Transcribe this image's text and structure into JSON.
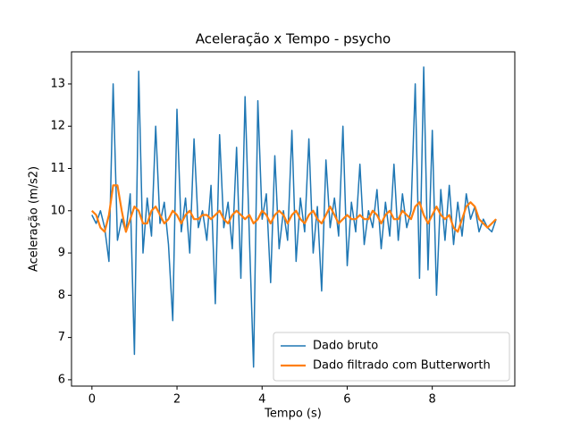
{
  "chart_data": {
    "type": "line",
    "title": "Aceleração x Tempo - psycho",
    "xlabel": "Tempo (s)",
    "ylabel": "Aceleração (m/s2)",
    "x": [
      0,
      0.1,
      0.2,
      0.3,
      0.4,
      0.5,
      0.6,
      0.7,
      0.8,
      0.9,
      1,
      1.1,
      1.2,
      1.3,
      1.4,
      1.5,
      1.6,
      1.7,
      1.8,
      1.9,
      2,
      2.1,
      2.2,
      2.3,
      2.4,
      2.5,
      2.6,
      2.7,
      2.8,
      2.9,
      3,
      3.1,
      3.2,
      3.3,
      3.4,
      3.5,
      3.6,
      3.7,
      3.8,
      3.9,
      4,
      4.1,
      4.2,
      4.3,
      4.4,
      4.5,
      4.6,
      4.7,
      4.8,
      4.9,
      5,
      5.1,
      5.2,
      5.3,
      5.4,
      5.5,
      5.6,
      5.7,
      5.8,
      5.9,
      6,
      6.1,
      6.2,
      6.3,
      6.4,
      6.5,
      6.6,
      6.7,
      6.8,
      6.9,
      7,
      7.1,
      7.2,
      7.3,
      7.4,
      7.5,
      7.6,
      7.7,
      7.8,
      7.9,
      8,
      8.1,
      8.2,
      8.3,
      8.4,
      8.5,
      8.6,
      8.7,
      8.8,
      8.9,
      9,
      9.1,
      9.2,
      9.3,
      9.4,
      9.5
    ],
    "series": [
      {
        "name": "Dado bruto",
        "color": "#1f77b4",
        "width": 1.5,
        "values": [
          9.9,
          9.7,
          10.0,
          9.6,
          8.8,
          13.0,
          9.3,
          9.8,
          9.5,
          10.4,
          6.6,
          13.3,
          9.0,
          10.3,
          9.4,
          12.0,
          9.7,
          10.2,
          9.2,
          7.4,
          12.4,
          9.5,
          10.3,
          9.0,
          11.7,
          9.6,
          10.0,
          9.3,
          10.6,
          7.8,
          11.8,
          9.6,
          10.2,
          9.1,
          11.5,
          8.4,
          12.7,
          9.4,
          6.3,
          12.6,
          9.8,
          10.4,
          8.3,
          11.3,
          9.1,
          10.0,
          9.3,
          11.9,
          8.8,
          10.3,
          9.5,
          11.7,
          9.0,
          10.1,
          8.1,
          11.2,
          9.6,
          10.3,
          9.4,
          12.0,
          8.7,
          10.2,
          9.5,
          11.1,
          9.2,
          10.0,
          9.6,
          10.5,
          9.1,
          10.2,
          9.4,
          11.1,
          9.3,
          10.4,
          9.6,
          10.0,
          13.0,
          8.4,
          13.4,
          8.6,
          11.9,
          8.0,
          10.5,
          9.3,
          10.6,
          9.2,
          10.2,
          9.4,
          10.4,
          9.8,
          10.1,
          9.5,
          9.8,
          9.6,
          9.5,
          9.8
        ]
      },
      {
        "name": "Dado filtrado com Butterworth",
        "color": "#ff7f0e",
        "width": 2.2,
        "values": [
          10.0,
          9.9,
          9.6,
          9.5,
          9.9,
          10.6,
          10.6,
          10.0,
          9.5,
          9.8,
          10.1,
          10.0,
          9.7,
          9.7,
          10.0,
          10.1,
          9.9,
          9.7,
          9.8,
          10.0,
          9.9,
          9.7,
          9.9,
          10.0,
          9.8,
          9.8,
          9.9,
          9.9,
          9.8,
          9.9,
          10.0,
          9.8,
          9.7,
          9.9,
          10.0,
          9.9,
          9.8,
          9.9,
          9.7,
          9.8,
          10.0,
          9.9,
          9.7,
          9.9,
          10.0,
          9.9,
          9.7,
          9.9,
          10.0,
          9.8,
          9.7,
          9.9,
          10.0,
          9.8,
          9.7,
          9.9,
          10.1,
          9.9,
          9.7,
          9.8,
          9.9,
          9.8,
          9.8,
          9.9,
          9.8,
          9.8,
          10.0,
          9.9,
          9.7,
          9.9,
          10.0,
          9.8,
          9.8,
          10.0,
          9.9,
          9.8,
          10.1,
          10.2,
          9.9,
          9.7,
          9.9,
          10.1,
          9.9,
          9.8,
          9.9,
          9.6,
          9.5,
          9.8,
          10.1,
          10.2,
          10.1,
          9.8,
          9.7,
          9.6,
          9.7,
          9.8
        ]
      }
    ],
    "xlim": [
      -0.48,
      9.94
    ],
    "ylim": [
      5.85,
      13.76
    ],
    "xticks": [
      0,
      2,
      4,
      6,
      8
    ],
    "yticks": [
      6,
      7,
      8,
      9,
      10,
      11,
      12,
      13
    ],
    "legend": "lower right"
  }
}
